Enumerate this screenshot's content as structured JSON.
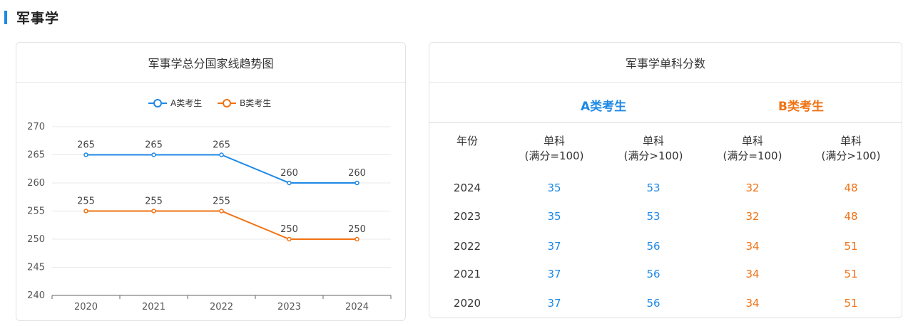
{
  "section": {
    "title": "军事学"
  },
  "chart_card": {
    "title": "军事学总分国家线趋势图"
  },
  "table_card": {
    "title": "军事学单科分数",
    "group_a": "A类考生",
    "group_b": "B类考生",
    "headers": {
      "year": "年份",
      "col1_line1": "单科",
      "col1_line2": "(满分=100)",
      "col2_line1": "单科",
      "col2_line2": "(满分>100)",
      "col3_line1": "单科",
      "col3_line2": "(满分=100)",
      "col4_line1": "单科",
      "col4_line2": "(满分>100)"
    },
    "rows": [
      {
        "year": "2024",
        "a1": "35",
        "a2": "53",
        "b1": "32",
        "b2": "48"
      },
      {
        "year": "2023",
        "a1": "35",
        "a2": "53",
        "b1": "32",
        "b2": "48"
      },
      {
        "year": "2022",
        "a1": "37",
        "a2": "56",
        "b1": "34",
        "b2": "51"
      },
      {
        "year": "2021",
        "a1": "37",
        "a2": "56",
        "b1": "34",
        "b2": "51"
      },
      {
        "year": "2020",
        "a1": "37",
        "a2": "56",
        "b1": "34",
        "b2": "51"
      }
    ]
  },
  "colors": {
    "accent_blue": "#1e88e5",
    "accent_orange": "#f07215",
    "grid": "#e8e8e8"
  },
  "chart_data": {
    "type": "line",
    "title": "",
    "categories": [
      "2020",
      "2021",
      "2022",
      "2023",
      "2024"
    ],
    "series": [
      {
        "name": "A类考生",
        "values": [
          265,
          265,
          265,
          260,
          260
        ],
        "color": "#1e88e5"
      },
      {
        "name": "B类考生",
        "values": [
          255,
          255,
          255,
          250,
          250
        ],
        "color": "#f07215"
      }
    ],
    "yticks": [
      240,
      245,
      250,
      255,
      260,
      265,
      270
    ],
    "ylim": [
      240,
      270
    ],
    "grid": true,
    "legend": "top-center",
    "data_labels": true
  }
}
